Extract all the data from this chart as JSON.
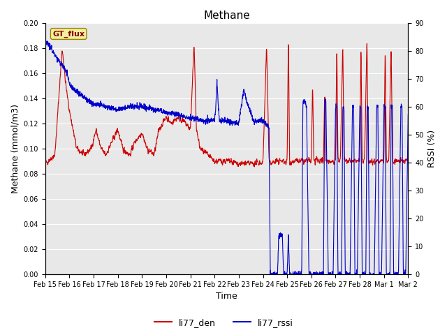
{
  "title": "Methane",
  "xlabel": "Time",
  "ylabel_left": "Methane (mmol/m3)",
  "ylabel_right": "RSSI (%)",
  "ylim_left": [
    0.0,
    0.2
  ],
  "ylim_right": [
    0,
    90
  ],
  "yticks_left": [
    0.0,
    0.02,
    0.04,
    0.06,
    0.08,
    0.1,
    0.12,
    0.14,
    0.16,
    0.18,
    0.2
  ],
  "yticks_right": [
    0,
    10,
    20,
    30,
    40,
    50,
    60,
    70,
    80,
    90
  ],
  "color_red": "#cc0000",
  "color_blue": "#0000cc",
  "legend_label_red": "li77_den",
  "legend_label_blue": "li77_rssi",
  "gt_flux_label": "GT_flux",
  "background_color": "#e8e8e8",
  "figure_background": "#ffffff",
  "title_fontsize": 11,
  "axis_fontsize": 9,
  "legend_fontsize": 9,
  "linewidth": 0.8,
  "xtick_labels": [
    "Feb 15",
    "Feb 16",
    "Feb 17",
    "Feb 18",
    "Feb 19",
    "Feb 20",
    "Feb 21",
    "Feb 22",
    "Feb 23",
    "Feb 24",
    "Feb 25",
    "Feb 26",
    "Feb 27",
    "Feb 28",
    "Mar 1",
    "Mar 2"
  ],
  "xtick_positions": [
    0,
    1,
    2,
    3,
    4,
    5,
    6,
    7,
    8,
    9,
    10,
    11,
    12,
    13,
    14,
    15
  ]
}
